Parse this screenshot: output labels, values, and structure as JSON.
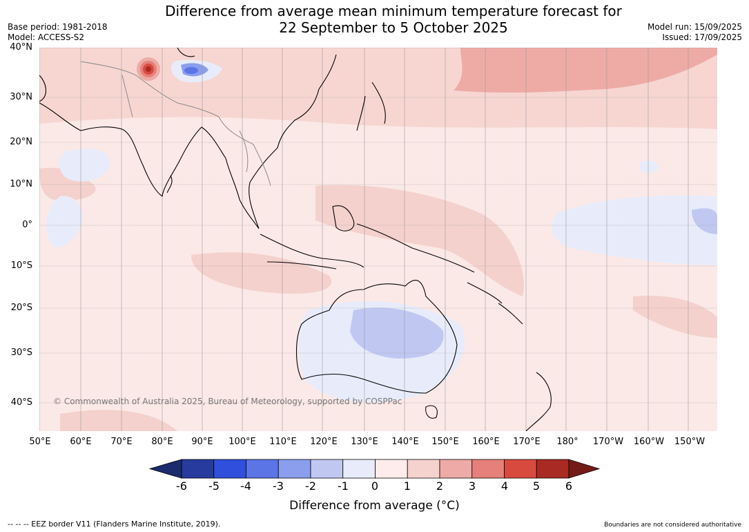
{
  "title": {
    "line1": "Difference from average mean minimum temperature forecast for",
    "line2": "22 September to 5 October 2025"
  },
  "meta_left": {
    "base_period": "Base period: 1981-2018",
    "model": "Model: ACCESS-S2"
  },
  "meta_right": {
    "model_run": "Model run: 15/09/2025",
    "issued": "Issued: 17/09/2025"
  },
  "map": {
    "copyright": "© Commonwealth of Australia 2025, Bureau of Meteorology, supported by COSPPac",
    "lat_labels": [
      "40°N",
      "30°N",
      "20°N",
      "10°N",
      "0°",
      "10°S",
      "20°S",
      "30°S",
      "40°S"
    ],
    "lon_labels": [
      "50°E",
      "60°E",
      "70°E",
      "80°E",
      "90°E",
      "100°E",
      "110°E",
      "120°E",
      "130°E",
      "140°E",
      "150°E",
      "160°E",
      "170°E",
      "180°",
      "170°W",
      "160°W",
      "150°W"
    ]
  },
  "colorbar": {
    "labels": [
      "-6",
      "-5",
      "-4",
      "-3",
      "-2",
      "-1",
      "0",
      "1",
      "2",
      "3",
      "4",
      "5",
      "6"
    ],
    "colors": [
      "#273a9d",
      "#2f4fdc",
      "#5b74e6",
      "#8b9eed",
      "#c0c8f2",
      "#e8ecfa",
      "#fdeceb",
      "#f6d2cf",
      "#eeaaa6",
      "#e5807a",
      "#d94a3e",
      "#a92a23"
    ],
    "under_color": "#1c2a6e",
    "over_color": "#731c17",
    "title": "Difference from average (°C)"
  },
  "footer": {
    "eez": "--  --  -- EEZ border V11 (Flanders Marine Institute, 2019).",
    "boundaries": "Boundaries are not considered authoritative"
  }
}
